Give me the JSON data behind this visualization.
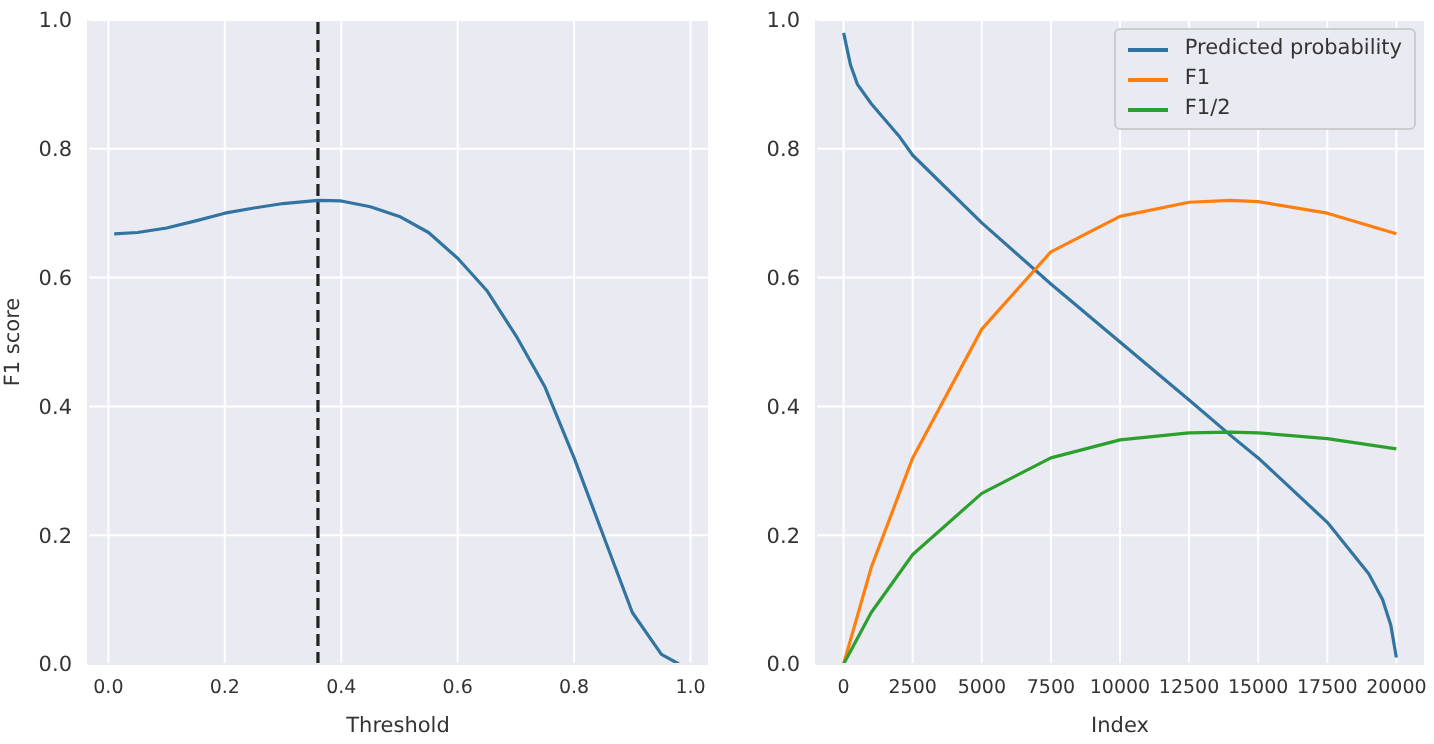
{
  "chart_data": [
    {
      "type": "line",
      "xlabel": "Threshold",
      "ylabel": "F1 score",
      "xlim": [
        -0.035,
        1.03
      ],
      "ylim": [
        0,
        1
      ],
      "xticks": [
        {
          "value": 0,
          "label": "0.0"
        },
        {
          "value": 0.2,
          "label": "0.2"
        },
        {
          "value": 0.4,
          "label": "0.4"
        },
        {
          "value": 0.6,
          "label": "0.6"
        },
        {
          "value": 0.8,
          "label": "0.8"
        },
        {
          "value": 1,
          "label": "1.0"
        }
      ],
      "yticks": [
        {
          "value": 0,
          "label": "0.0"
        },
        {
          "value": 0.2,
          "label": "0.2"
        },
        {
          "value": 0.4,
          "label": "0.4"
        },
        {
          "value": 0.6,
          "label": "0.6"
        },
        {
          "value": 0.8,
          "label": "0.8"
        },
        {
          "value": 1,
          "label": "1.0"
        }
      ],
      "grid": true,
      "legend": false,
      "ref_lines": [
        {
          "axis": "x",
          "value": 0.36,
          "color": "#222222",
          "line_style": "dashed"
        }
      ],
      "series": [
        {
          "color": "#3274a1",
          "x": [
            0.01,
            0.05,
            0.1,
            0.15,
            0.2,
            0.25,
            0.3,
            0.36,
            0.4,
            0.45,
            0.5,
            0.55,
            0.6,
            0.65,
            0.7,
            0.75,
            0.8,
            0.85,
            0.9,
            0.95,
            0.98
          ],
          "values": [
            0.668,
            0.67,
            0.677,
            0.688,
            0.7,
            0.708,
            0.715,
            0.72,
            0.719,
            0.71,
            0.695,
            0.67,
            0.63,
            0.58,
            0.51,
            0.43,
            0.32,
            0.2,
            0.08,
            0.015,
            0.0
          ]
        }
      ]
    },
    {
      "type": "line",
      "xlabel": "Index",
      "xlim": [
        -1000,
        21000
      ],
      "ylim": [
        0,
        1
      ],
      "xticks": [
        0,
        2500,
        5000,
        7500,
        10000,
        12500,
        15000,
        17500,
        20000
      ],
      "yticks": [
        {
          "value": 0,
          "label": "0.0"
        },
        {
          "value": 0.2,
          "label": "0.2"
        },
        {
          "value": 0.4,
          "label": "0.4"
        },
        {
          "value": 0.6,
          "label": "0.6"
        },
        {
          "value": 0.8,
          "label": "0.8"
        },
        {
          "value": 1,
          "label": "1.0"
        }
      ],
      "grid": true,
      "legend": "top right",
      "series": [
        {
          "name": "Predicted probability",
          "color": "#3274a1",
          "x": [
            0,
            250,
            500,
            1000,
            2000,
            2500,
            5000,
            7500,
            10000,
            12500,
            14000,
            15000,
            17500,
            19000,
            19500,
            19800,
            20000
          ],
          "values": [
            0.98,
            0.93,
            0.9,
            0.87,
            0.82,
            0.79,
            0.685,
            0.59,
            0.5,
            0.41,
            0.355,
            0.32,
            0.22,
            0.14,
            0.1,
            0.06,
            0.01
          ]
        },
        {
          "name": "F1",
          "color": "#ff7f0e",
          "x": [
            0,
            1000,
            2500,
            5000,
            7500,
            10000,
            12500,
            14000,
            15000,
            17500,
            20000
          ],
          "values": [
            0,
            0.15,
            0.32,
            0.52,
            0.64,
            0.695,
            0.717,
            0.72,
            0.718,
            0.7,
            0.668
          ]
        },
        {
          "name": "F1/2",
          "color": "#2ca02c",
          "x": [
            0,
            1000,
            2500,
            5000,
            7500,
            10000,
            12500,
            14000,
            15000,
            17500,
            20000
          ],
          "values": [
            0,
            0.08,
            0.17,
            0.265,
            0.32,
            0.348,
            0.359,
            0.36,
            0.359,
            0.35,
            0.334
          ]
        }
      ]
    }
  ]
}
